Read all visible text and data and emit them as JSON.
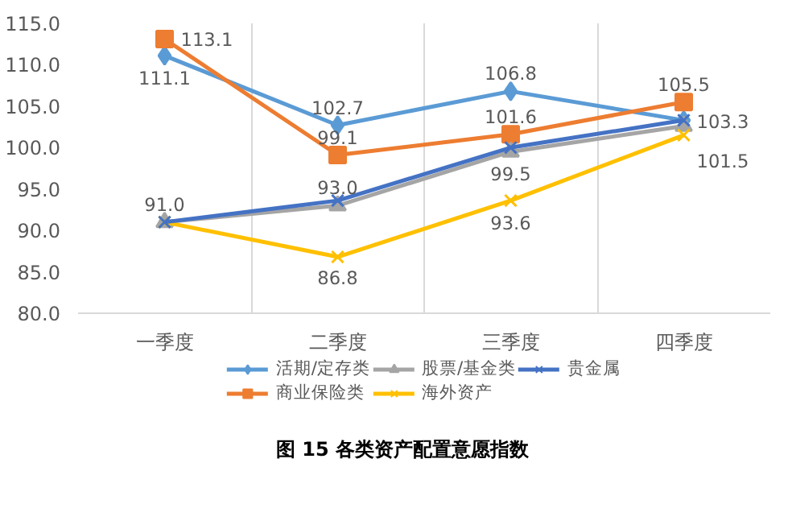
{
  "chart_data": {
    "type": "line",
    "title": "图 15 各类资产配置意愿指数",
    "categories": [
      "一季度",
      "二季度",
      "三季度",
      "四季度"
    ],
    "ylim": [
      80,
      115
    ],
    "yticks": [
      {
        "value": 80,
        "label": "80.0"
      },
      {
        "value": 85,
        "label": "85.0"
      },
      {
        "value": 90,
        "label": "90.0"
      },
      {
        "value": 95,
        "label": "95.0"
      },
      {
        "value": 100,
        "label": "100.0"
      },
      {
        "value": 105,
        "label": "105.0"
      },
      {
        "value": 110,
        "label": "110.0"
      },
      {
        "value": 115,
        "label": "115.0"
      }
    ],
    "grid": "x",
    "legend": "bottom",
    "line_style": "solid",
    "series": [
      {
        "name": "活期/定存类",
        "color": "#5b9bd5",
        "marker": "diamond",
        "values": [
          111.1,
          102.7,
          106.8,
          103.3
        ],
        "value_labels": [
          "111.1",
          "102.7",
          "106.8",
          "103.3"
        ]
      },
      {
        "name": "商业保险类",
        "color": "#ed7d31",
        "marker": "square",
        "values": [
          113.1,
          99.1,
          101.6,
          105.5
        ],
        "value_labels": [
          "113.1",
          "99.1",
          "101.6",
          "105.5"
        ]
      },
      {
        "name": "股票/基金类",
        "color": "#a5a5a5",
        "marker": "triangle",
        "values": [
          91.0,
          93.0,
          99.5,
          102.6
        ],
        "value_labels": [
          null,
          "93.0",
          "99.5",
          null
        ]
      },
      {
        "name": "海外资产",
        "color": "#ffc000",
        "marker": "cross",
        "values": [
          91.0,
          86.8,
          93.6,
          101.5
        ],
        "value_labels": [
          "91.0",
          "86.8",
          "93.6",
          "101.5"
        ]
      },
      {
        "name": "贵金属",
        "color": "#4472c4",
        "marker": "cross",
        "values": [
          91.0,
          93.6,
          100.0,
          103.3
        ],
        "value_labels": [
          null,
          null,
          null,
          null
        ]
      }
    ]
  }
}
